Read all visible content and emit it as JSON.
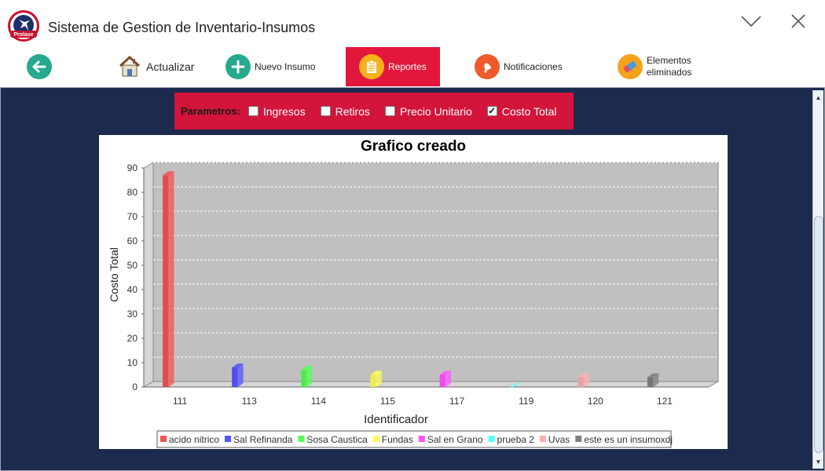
{
  "window": {
    "title": "Sistema de Gestion de Inventario-Insumos",
    "logo_text": "Prolase"
  },
  "toolbar": {
    "items": [
      {
        "label": "",
        "icon": "back-arrow-icon"
      },
      {
        "label": "Actualizar",
        "icon": "house-icon"
      },
      {
        "label": "Nuevo Insumo",
        "icon": "plus-icon"
      },
      {
        "label": "Reportes",
        "icon": "clipboard-icon"
      },
      {
        "label": "Notificaciones",
        "icon": "bell-icon"
      },
      {
        "label": "Elementos eliminados",
        "icon": "eraser-icon"
      }
    ]
  },
  "params": {
    "label": "Parametros:",
    "options": [
      {
        "label": "Ingresos",
        "checked": false
      },
      {
        "label": "Retiros",
        "checked": false
      },
      {
        "label": "Precio Unitario",
        "checked": false
      },
      {
        "label": "Costo Total",
        "checked": true
      }
    ]
  },
  "chart_data": {
    "type": "bar",
    "title": "Grafico creado",
    "xlabel": "Identificador",
    "ylabel": "Costo Total",
    "ylim": [
      0,
      90
    ],
    "yticks": [
      0,
      10,
      20,
      30,
      40,
      50,
      60,
      70,
      80,
      90
    ],
    "categories": [
      "111",
      "113",
      "114",
      "115",
      "117",
      "119",
      "120",
      "121"
    ],
    "values": [
      87,
      8,
      7,
      5,
      5,
      0,
      4,
      4
    ],
    "legend_position": "bottom",
    "grid": true,
    "series": [
      {
        "name": "acido nitrico",
        "color": "#f25555"
      },
      {
        "name": "Sal Refinanda",
        "color": "#5555ff"
      },
      {
        "name": "Sosa Caustica",
        "color": "#55ff55"
      },
      {
        "name": "Fundas",
        "color": "#ffff55"
      },
      {
        "name": "Sal en Grano",
        "color": "#ff55ff"
      },
      {
        "name": "prueba 2",
        "color": "#55ffff"
      },
      {
        "name": "Uvas",
        "color": "#ffafaf"
      },
      {
        "name": "este es un insumoxdj",
        "color": "#808080"
      }
    ]
  }
}
